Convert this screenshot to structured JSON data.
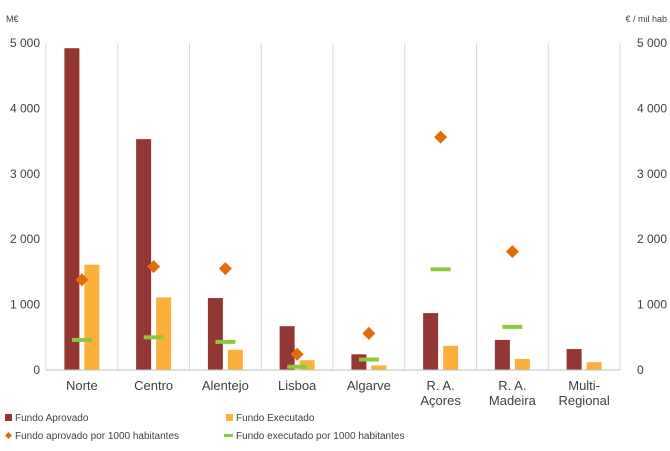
{
  "chart_data": {
    "type": "bar",
    "categories": [
      "Norte",
      "Centro",
      "Alentejo",
      "Lisboa",
      "Algarve",
      "R. A.\nAçores",
      "R. A.\nMadeira",
      "Multi-\nRegional"
    ],
    "left_axis": {
      "label": "M€",
      "ylim": [
        0,
        5000
      ],
      "ticks": [
        0,
        1000,
        2000,
        3000,
        4000,
        5000
      ],
      "tick_labels": [
        "0",
        "1 000",
        "2 000",
        "3 000",
        "4 000",
        "5 000"
      ]
    },
    "right_axis": {
      "label": "€ / mil hab",
      "ylim": [
        0,
        5000
      ],
      "ticks": [
        0,
        1000,
        2000,
        3000,
        4000,
        5000
      ],
      "tick_labels": [
        "0",
        "1 000",
        "2 000",
        "3 000",
        "4 000",
        "5 000"
      ]
    },
    "grid": "vertical-category-separators",
    "legend_position": "bottom",
    "series": [
      {
        "name": "Fundo Aprovado",
        "kind": "bar",
        "axis": "left",
        "color": "#943634",
        "values": [
          4920,
          3530,
          1100,
          670,
          240,
          870,
          460,
          320
        ]
      },
      {
        "name": "Fundo Executado",
        "kind": "bar",
        "axis": "left",
        "color": "#fbb03b",
        "values": [
          1610,
          1110,
          310,
          150,
          70,
          370,
          170,
          120
        ]
      },
      {
        "name": "Fundo aprovado por 1000 habitantes",
        "kind": "marker-diamond",
        "axis": "right",
        "color": "#e36c0a",
        "values": [
          1380,
          1580,
          1550,
          240,
          560,
          3560,
          1810,
          null
        ]
      },
      {
        "name": "Fundo executado  por 1000 habitantes",
        "kind": "marker-dash",
        "axis": "right",
        "color": "#8dc63f",
        "values": [
          460,
          500,
          430,
          50,
          160,
          1540,
          660,
          null
        ]
      }
    ]
  }
}
